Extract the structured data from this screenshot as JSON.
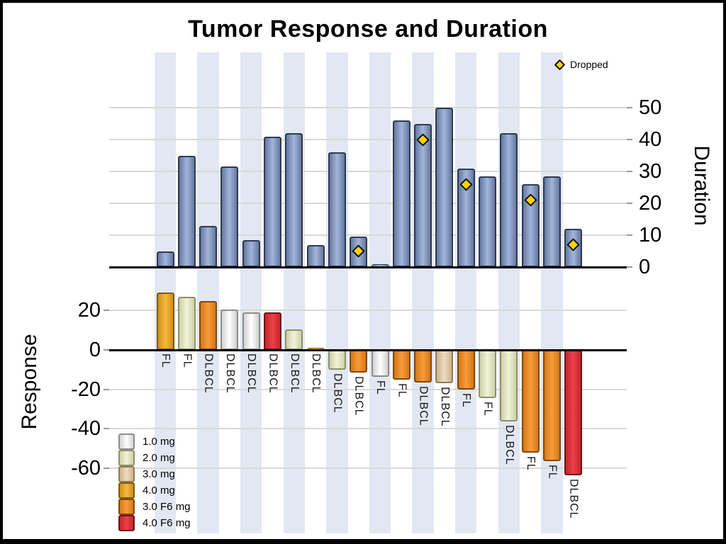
{
  "title": "Tumor Response and Duration",
  "dropped_legend": {
    "label": "Dropped"
  },
  "axes": {
    "duration": {
      "label": "Duration",
      "ticks": [
        0,
        10,
        20,
        30,
        40,
        50
      ]
    },
    "response": {
      "label": "Response",
      "ticks": [
        20,
        0,
        -20,
        -40,
        -60
      ]
    }
  },
  "dose_legend": [
    {
      "label": "1.0 mg"
    },
    {
      "label": "2.0 mg"
    },
    {
      "label": "3.0 mg"
    },
    {
      "label": "4.0 mg"
    },
    {
      "label": "3.0 F6 mg"
    },
    {
      "label": "4.0 F6 mg"
    }
  ],
  "colors": {
    "stripe": "#e2e7f3",
    "gridline": "#d9d9d9",
    "axis_line": "#000000",
    "duration_bar": {
      "mid": "#a2b5db",
      "edge": "#66789e",
      "border": "#2e3a52"
    },
    "dropped_diamond": {
      "fill": "#ffd400",
      "border": "#111111"
    },
    "doses": {
      "1.0 mg": {
        "mid": "#ffffff",
        "edge": "#d2d2d2",
        "border": "#8c8c8c"
      },
      "2.0 mg": {
        "mid": "#f1f3d8",
        "edge": "#cdd1a8",
        "border": "#8d9168"
      },
      "3.0 mg": {
        "mid": "#eddcc0",
        "edge": "#cdb38c",
        "border": "#8f7a55"
      },
      "4.0 mg": {
        "mid": "#f6b83e",
        "edge": "#d18e1b",
        "border": "#7d5a0f"
      },
      "3.0 F6 mg": {
        "mid": "#f79c3b",
        "edge": "#d57716",
        "border": "#7c4a0e"
      },
      "4.0 F6 mg": {
        "mid": "#ee4046",
        "edge": "#c32530",
        "border": "#701318"
      }
    }
  },
  "chart_data": {
    "type": "bar",
    "title": "Tumor Response and Duration",
    "panels": [
      {
        "name": "duration",
        "ylabel": "Duration",
        "axis_side": "right",
        "ylim": [
          0,
          55
        ],
        "yticks": [
          0,
          10,
          20,
          30,
          40,
          50
        ],
        "gridlines": true,
        "marker_legend": "Dropped"
      },
      {
        "name": "response",
        "ylabel": "Response",
        "axis_side": "left",
        "ylim": [
          -70,
          35
        ],
        "yticks": [
          20,
          0,
          -20,
          -40,
          -60
        ],
        "gridlines": true,
        "color_legend": [
          "1.0 mg",
          "2.0 mg",
          "3.0 mg",
          "4.0 mg",
          "3.0 F6 mg",
          "4.0 F6 mg"
        ]
      }
    ],
    "patients": [
      {
        "label": "FL",
        "dose": "4.0 mg",
        "response": 29,
        "duration": 5,
        "dropped": false,
        "dropped_at": null
      },
      {
        "label": "FL",
        "dose": "2.0 mg",
        "response": 27,
        "duration": 35,
        "dropped": false,
        "dropped_at": null
      },
      {
        "label": "DLBCL",
        "dose": "3.0 F6 mg",
        "response": 25,
        "duration": 13,
        "dropped": false,
        "dropped_at": null
      },
      {
        "label": "DLBCL",
        "dose": "1.0 mg",
        "response": 20.5,
        "duration": 31.5,
        "dropped": false,
        "dropped_at": null
      },
      {
        "label": "DLBCL",
        "dose": "1.0 mg",
        "response": 19,
        "duration": 8.5,
        "dropped": false,
        "dropped_at": null
      },
      {
        "label": "DLBCL",
        "dose": "4.0 F6 mg",
        "response": 19,
        "duration": 41,
        "dropped": false,
        "dropped_at": null
      },
      {
        "label": "DLBCL",
        "dose": "2.0 mg",
        "response": 10.5,
        "duration": 42,
        "dropped": false,
        "dropped_at": null
      },
      {
        "label": "DLBCL",
        "dose": "4.0 mg",
        "response": 0.5,
        "duration": 7,
        "dropped": false,
        "dropped_at": null
      },
      {
        "label": "DLBCL",
        "dose": "2.0 mg",
        "response": -10,
        "duration": 36,
        "dropped": false,
        "dropped_at": null
      },
      {
        "label": "DLBCL",
        "dose": "3.0 F6 mg",
        "response": -11.5,
        "duration": 9.5,
        "dropped": true,
        "dropped_at": 5
      },
      {
        "label": "FL",
        "dose": "1.0 mg",
        "response": -13.5,
        "duration": 1,
        "dropped": false,
        "dropped_at": null
      },
      {
        "label": "FL",
        "dose": "3.0 F6 mg",
        "response": -15,
        "duration": 46,
        "dropped": false,
        "dropped_at": null
      },
      {
        "label": "DLBCL",
        "dose": "3.0 F6 mg",
        "response": -16.5,
        "duration": 45,
        "dropped": true,
        "dropped_at": 40
      },
      {
        "label": "DLBCL",
        "dose": "3.0 mg",
        "response": -17,
        "duration": 50,
        "dropped": false,
        "dropped_at": null
      },
      {
        "label": "FL",
        "dose": "3.0 F6 mg",
        "response": -20,
        "duration": 31,
        "dropped": true,
        "dropped_at": 26
      },
      {
        "label": "FL",
        "dose": "2.0 mg",
        "response": -24.5,
        "duration": 28.5,
        "dropped": false,
        "dropped_at": null
      },
      {
        "label": "DLBCL",
        "dose": "2.0 mg",
        "response": -36.5,
        "duration": 42,
        "dropped": false,
        "dropped_at": null
      },
      {
        "label": "FL",
        "dose": "3.0 F6 mg",
        "response": -52,
        "duration": 26,
        "dropped": true,
        "dropped_at": 21
      },
      {
        "label": "FL",
        "dose": "3.0 F6 mg",
        "response": -56.5,
        "duration": 28.5,
        "dropped": false,
        "dropped_at": null
      },
      {
        "label": "DLBCL",
        "dose": "4.0 F6 mg",
        "response": -63.5,
        "duration": 12,
        "dropped": true,
        "dropped_at": 7
      }
    ]
  }
}
